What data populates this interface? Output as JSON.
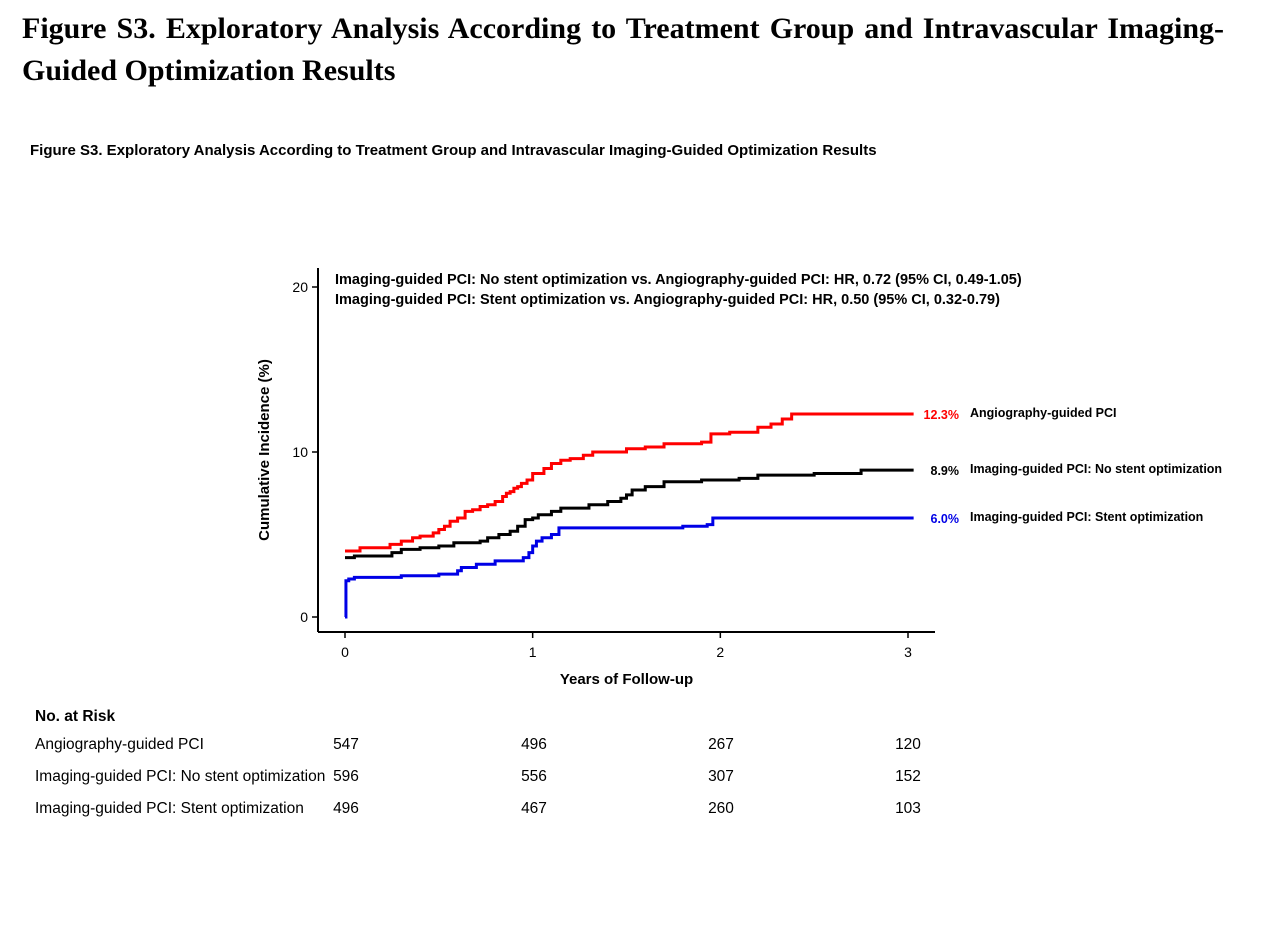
{
  "page_title": "Figure S3. Exploratory Analysis According to Treatment Group and Intravascular Imaging-Guided Optimization Results",
  "figure_caption": "Figure S3. Exploratory Analysis According to Treatment Group and Intravascular Imaging-Guided Optimization Results",
  "chart_data": {
    "type": "line",
    "step": true,
    "xlabel": "Years of Follow-up",
    "ylabel": "Cumulative Incidence (%)",
    "xlim": [
      0,
      3
    ],
    "ylim": [
      0,
      20
    ],
    "xticks": [
      0,
      1,
      2,
      3
    ],
    "yticks": [
      0,
      10,
      20
    ],
    "grid": false,
    "legend": "right-end labels",
    "annotations": [
      "Imaging-guided PCI: No stent optimization vs. Angiography-guided PCI: HR, 0.72 (95% CI, 0.49-1.05)",
      "Imaging-guided PCI: Stent optimization vs. Angiography-guided PCI: HR, 0.50 (95% CI, 0.32-0.79)"
    ],
    "series": [
      {
        "name": "Angiography-guided PCI",
        "end_label": "12.3%",
        "color": "#ff0000",
        "x": [
          0,
          0.01,
          0.08,
          0.24,
          0.3,
          0.36,
          0.4,
          0.47,
          0.5,
          0.53,
          0.56,
          0.6,
          0.64,
          0.68,
          0.72,
          0.76,
          0.8,
          0.84,
          0.86,
          0.88,
          0.9,
          0.92,
          0.94,
          0.97,
          1.0,
          1.06,
          1.1,
          1.15,
          1.2,
          1.27,
          1.32,
          1.5,
          1.6,
          1.7,
          1.9,
          1.95,
          2.05,
          2.2,
          2.27,
          2.33,
          2.38,
          3.03
        ],
        "values": [
          4.0,
          4.0,
          4.2,
          4.4,
          4.6,
          4.8,
          4.9,
          5.1,
          5.3,
          5.5,
          5.8,
          6.0,
          6.4,
          6.5,
          6.7,
          6.8,
          7.0,
          7.3,
          7.5,
          7.6,
          7.8,
          7.9,
          8.1,
          8.3,
          8.7,
          9.0,
          9.3,
          9.5,
          9.6,
          9.8,
          10.0,
          10.2,
          10.3,
          10.5,
          10.6,
          11.1,
          11.2,
          11.5,
          11.7,
          12.0,
          12.3,
          12.3
        ]
      },
      {
        "name": "Imaging-guided PCI: No stent optimization",
        "end_label": "8.9%",
        "color": "#000000",
        "x": [
          0,
          0.01,
          0.05,
          0.25,
          0.3,
          0.4,
          0.5,
          0.58,
          0.72,
          0.76,
          0.82,
          0.88,
          0.92,
          0.96,
          1.0,
          1.03,
          1.1,
          1.15,
          1.3,
          1.4,
          1.47,
          1.5,
          1.53,
          1.6,
          1.7,
          1.9,
          2.1,
          2.2,
          2.5,
          2.75,
          2.85,
          3.03
        ],
        "values": [
          3.6,
          3.6,
          3.7,
          3.9,
          4.1,
          4.2,
          4.3,
          4.5,
          4.6,
          4.8,
          5.0,
          5.2,
          5.5,
          5.9,
          6.0,
          6.2,
          6.4,
          6.6,
          6.8,
          7.0,
          7.2,
          7.4,
          7.7,
          7.9,
          8.2,
          8.3,
          8.4,
          8.6,
          8.7,
          8.9,
          8.9,
          8.9
        ],
        "values_note": null
      },
      {
        "name": "Imaging-guided PCI: Stent optimization",
        "end_label": "6.0%",
        "color": "#0000e6",
        "x": [
          0,
          0.005,
          0.02,
          0.05,
          0.3,
          0.5,
          0.6,
          0.62,
          0.7,
          0.8,
          0.95,
          0.98,
          1.0,
          1.02,
          1.05,
          1.1,
          1.14,
          1.5,
          1.8,
          1.93,
          1.96,
          2.5,
          3.03
        ],
        "values": [
          0.0,
          2.2,
          2.3,
          2.4,
          2.5,
          2.6,
          2.8,
          3.0,
          3.2,
          3.4,
          3.6,
          3.9,
          4.3,
          4.6,
          4.8,
          5.0,
          5.4,
          5.4,
          5.5,
          5.6,
          6.0,
          6.0,
          6.0
        ]
      }
    ]
  },
  "risk_table": {
    "title": "No. at Risk",
    "rows": [
      {
        "label": "Angiography-guided PCI",
        "values": [
          "547",
          "496",
          "267",
          "120"
        ]
      },
      {
        "label": "Imaging-guided PCI: No stent optimization",
        "values": [
          "596",
          "556",
          "307",
          "152"
        ]
      },
      {
        "label": "Imaging-guided PCI: Stent optimization",
        "values": [
          "496",
          "467",
          "260",
          "103"
        ]
      }
    ]
  }
}
